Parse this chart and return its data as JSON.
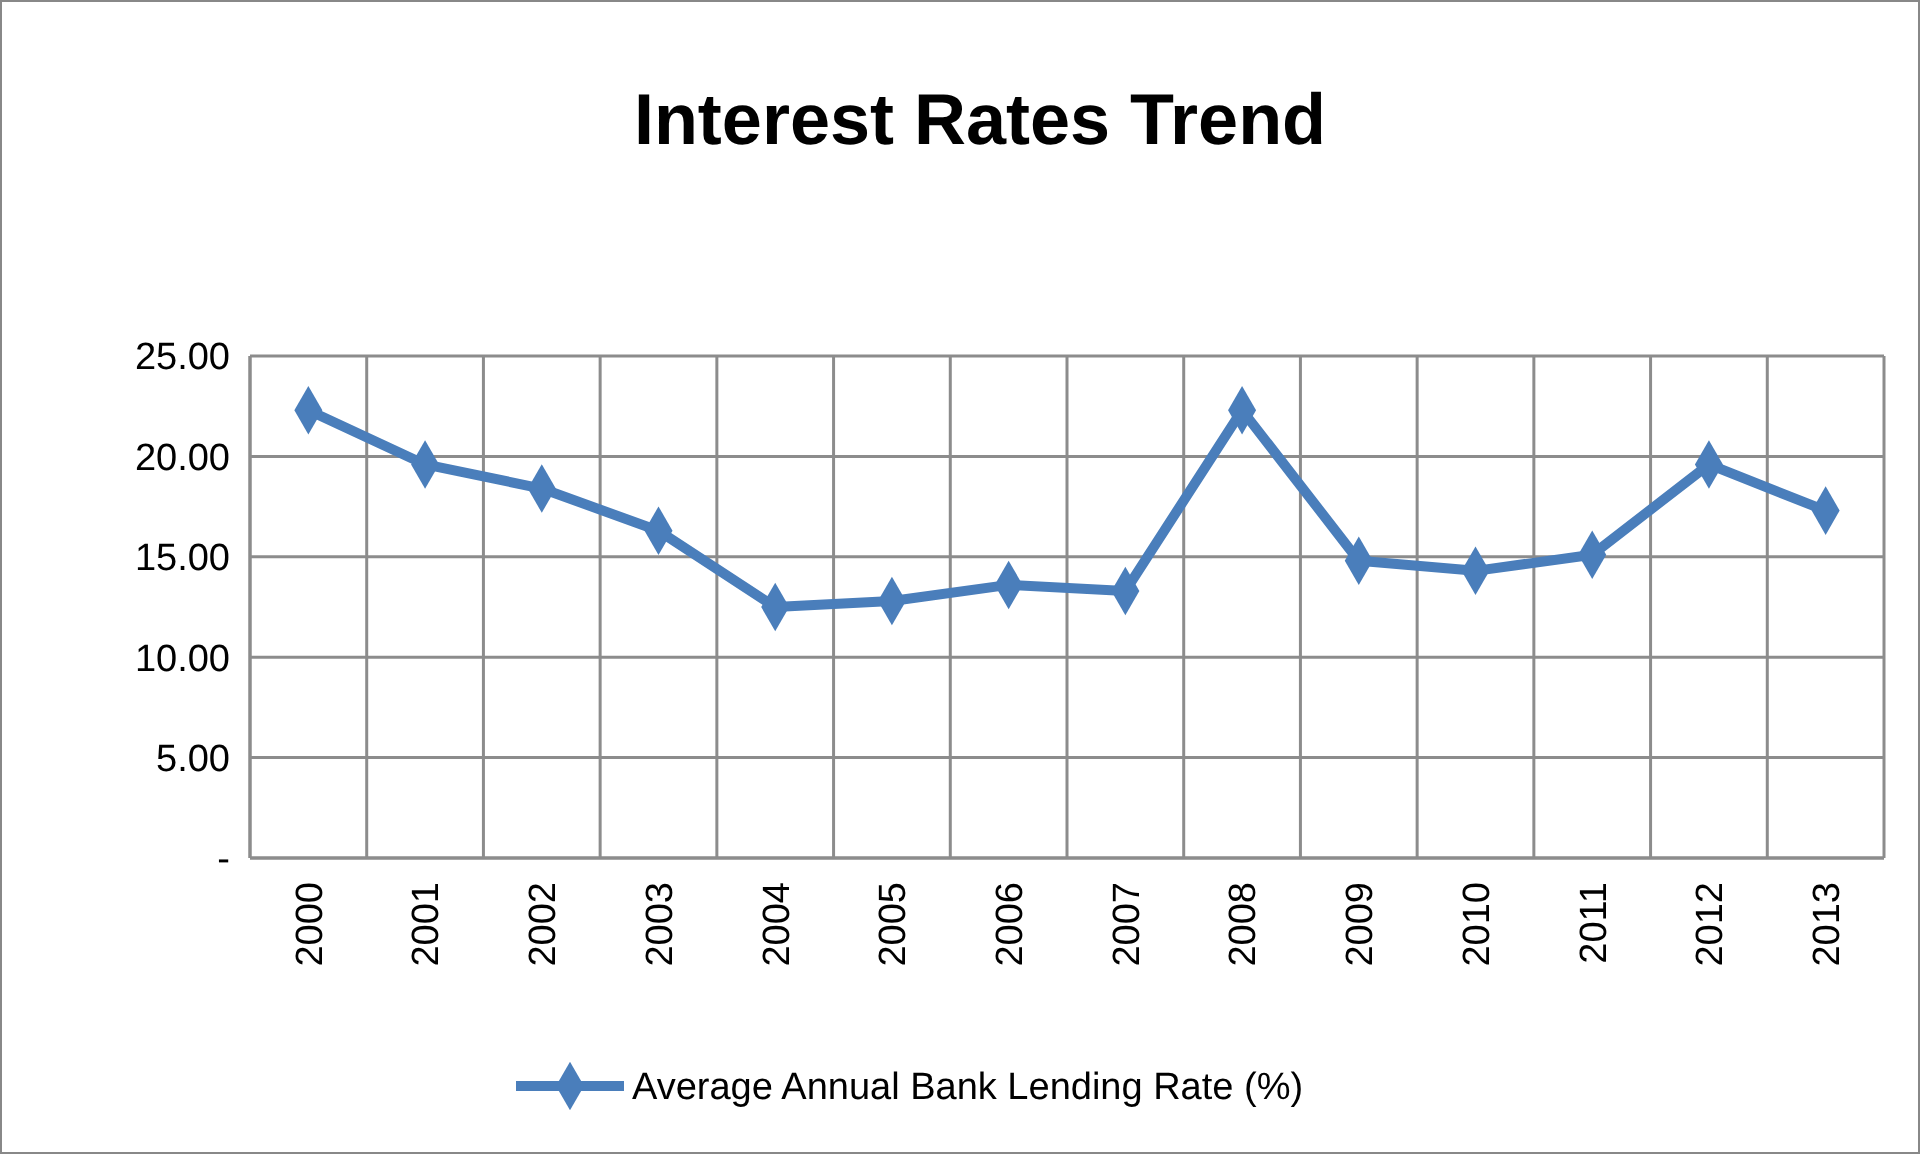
{
  "chart_data": {
    "type": "line",
    "title": "Interest Rates Trend",
    "categories": [
      "2000",
      "2001",
      "2002",
      "2003",
      "2004",
      "2005",
      "2006",
      "2007",
      "2008",
      "2009",
      "2010",
      "2011",
      "2012",
      "2013"
    ],
    "series": [
      {
        "name": "Average Annual Bank Lending Rate (%)",
        "color": "#4a7ebb",
        "values": [
          22.3,
          19.6,
          18.4,
          16.3,
          12.5,
          12.8,
          13.6,
          13.3,
          22.3,
          14.8,
          14.3,
          15.1,
          19.6,
          17.3
        ]
      }
    ],
    "ylim": [
      0,
      25
    ],
    "yticks": [
      {
        "value": 0,
        "label": "-"
      },
      {
        "value": 5,
        "label": "5.00"
      },
      {
        "value": 10,
        "label": "10.00"
      },
      {
        "value": 15,
        "label": "15.00"
      },
      {
        "value": 20,
        "label": "20.00"
      },
      {
        "value": 25,
        "label": "25.00"
      }
    ],
    "grid": true,
    "legend": "bottom",
    "marker": "diamond",
    "line_style": "solid"
  }
}
